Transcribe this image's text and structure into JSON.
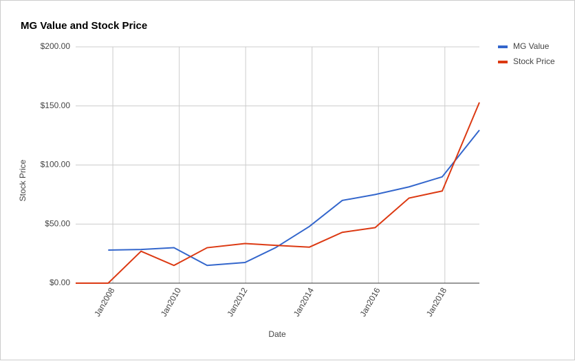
{
  "chart_data": {
    "type": "line",
    "title": "MG Value and Stock Price",
    "x_label": "Date",
    "y_label": "Stock Price",
    "x": [
      2006.88,
      2007.86,
      2008.85,
      2009.84,
      2010.84,
      2011.98,
      2012.9,
      2013.92,
      2014.91,
      2015.9,
      2016.92,
      2017.92,
      2019.04
    ],
    "series": [
      {
        "name": "MG Value",
        "color": "#3366cc",
        "values": [
          null,
          28,
          28.5,
          30,
          15,
          17.5,
          30,
          48,
          70,
          75,
          81.5,
          90,
          129.5
        ]
      },
      {
        "name": "Stock Price",
        "color": "#dc3912",
        "values": [
          0,
          0,
          27,
          15,
          30,
          33.5,
          32,
          30.5,
          43,
          47,
          72,
          78,
          153
        ]
      }
    ],
    "xlim": [
      2006.88,
      2019.04
    ],
    "xticks": [
      {
        "value": 2008,
        "label": "Jan2008"
      },
      {
        "value": 2010,
        "label": "Jan2010"
      },
      {
        "value": 2012,
        "label": "Jan2012"
      },
      {
        "value": 2014,
        "label": "Jan2014"
      },
      {
        "value": 2016,
        "label": "Jan2016"
      },
      {
        "value": 2018,
        "label": "Jan2018"
      }
    ],
    "ylim": [
      0,
      200
    ],
    "yticks": [
      {
        "value": 0,
        "label": "$0.00"
      },
      {
        "value": 50,
        "label": "$50.00"
      },
      {
        "value": 100,
        "label": "$100.00"
      },
      {
        "value": 150,
        "label": "$150.00"
      },
      {
        "value": 200,
        "label": "$200.00"
      }
    ],
    "grid": true,
    "legend": "right"
  }
}
